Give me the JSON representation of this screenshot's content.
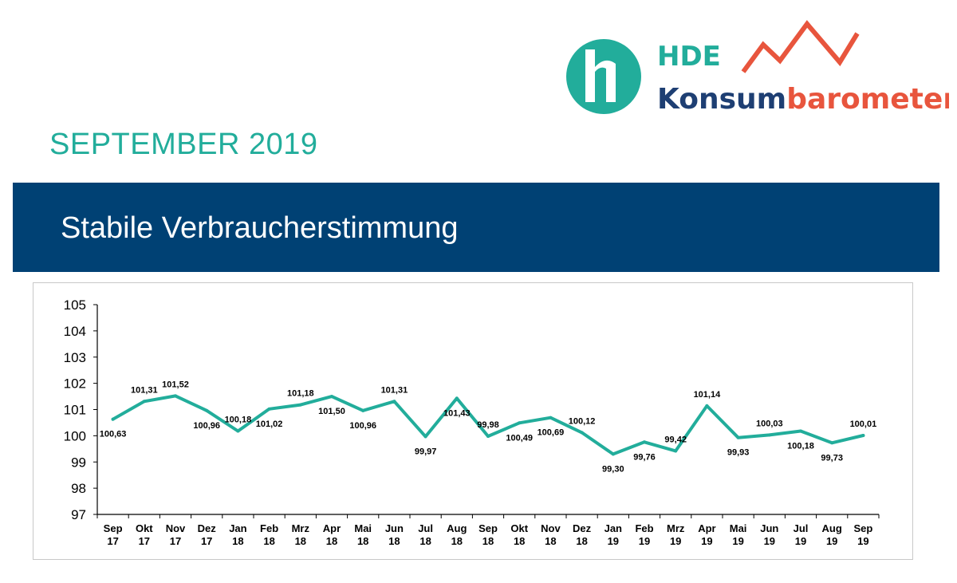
{
  "header": {
    "brand_hde": "HDE",
    "brand_konsum": "Konsum",
    "brand_barometer": "barometer",
    "month": "SEPTEMBER 2019",
    "headline": "Stabile Verbraucherstimmung"
  },
  "colors": {
    "teal": "#22ad9b",
    "navy": "#004174",
    "orange": "#e8553d",
    "logo_navy": "#1e3f73"
  },
  "chart_data": {
    "type": "line",
    "title": "",
    "xlabel": "",
    "ylabel": "",
    "ylim": [
      97,
      105
    ],
    "yticks": [
      "97",
      "98",
      "99",
      "100",
      "101",
      "102",
      "103",
      "104",
      "105"
    ],
    "categories": [
      [
        "Sep",
        "17"
      ],
      [
        "Okt",
        "17"
      ],
      [
        "Nov",
        "17"
      ],
      [
        "Dez",
        "17"
      ],
      [
        "Jan",
        "18"
      ],
      [
        "Feb",
        "18"
      ],
      [
        "Mrz",
        "18"
      ],
      [
        "Apr",
        "18"
      ],
      [
        "Mai",
        "18"
      ],
      [
        "Jun",
        "18"
      ],
      [
        "Jul",
        "18"
      ],
      [
        "Aug",
        "18"
      ],
      [
        "Sep",
        "18"
      ],
      [
        "Okt",
        "18"
      ],
      [
        "Nov",
        "18"
      ],
      [
        "Dez",
        "18"
      ],
      [
        "Jan",
        "19"
      ],
      [
        "Feb",
        "19"
      ],
      [
        "Mrz",
        "19"
      ],
      [
        "Apr",
        "19"
      ],
      [
        "Mai",
        "19"
      ],
      [
        "Jun",
        "19"
      ],
      [
        "Jul",
        "19"
      ],
      [
        "Aug",
        "19"
      ],
      [
        "Sep",
        "19"
      ]
    ],
    "series": [
      {
        "name": "HDE Konsumbarometer",
        "values": [
          100.63,
          101.31,
          101.52,
          100.96,
          100.18,
          101.02,
          101.18,
          101.5,
          100.96,
          101.31,
          99.97,
          101.43,
          99.98,
          100.49,
          100.69,
          100.12,
          99.3,
          99.76,
          99.42,
          101.14,
          99.93,
          100.03,
          100.18,
          99.73,
          100.01
        ],
        "labels": [
          "100,63",
          "101,31",
          "101,52",
          "100,96",
          "100,18",
          "101,02",
          "101,18",
          "101,50",
          "100,96",
          "101,31",
          "99,97",
          "101,43",
          "99,98",
          "100,49",
          "100,69",
          "100,12",
          "99,30",
          "99,76",
          "99,42",
          "101,14",
          "99,93",
          "100,03",
          "100,18",
          "99,73",
          "100,01"
        ],
        "label_side": [
          "below",
          "above",
          "above",
          "below",
          "above",
          "below",
          "above",
          "below",
          "below",
          "above",
          "below",
          "below",
          "above",
          "below",
          "below",
          "above",
          "below",
          "below",
          "above",
          "above",
          "below",
          "above",
          "below",
          "below",
          "above"
        ]
      }
    ],
    "grid": false,
    "legend": "none"
  }
}
